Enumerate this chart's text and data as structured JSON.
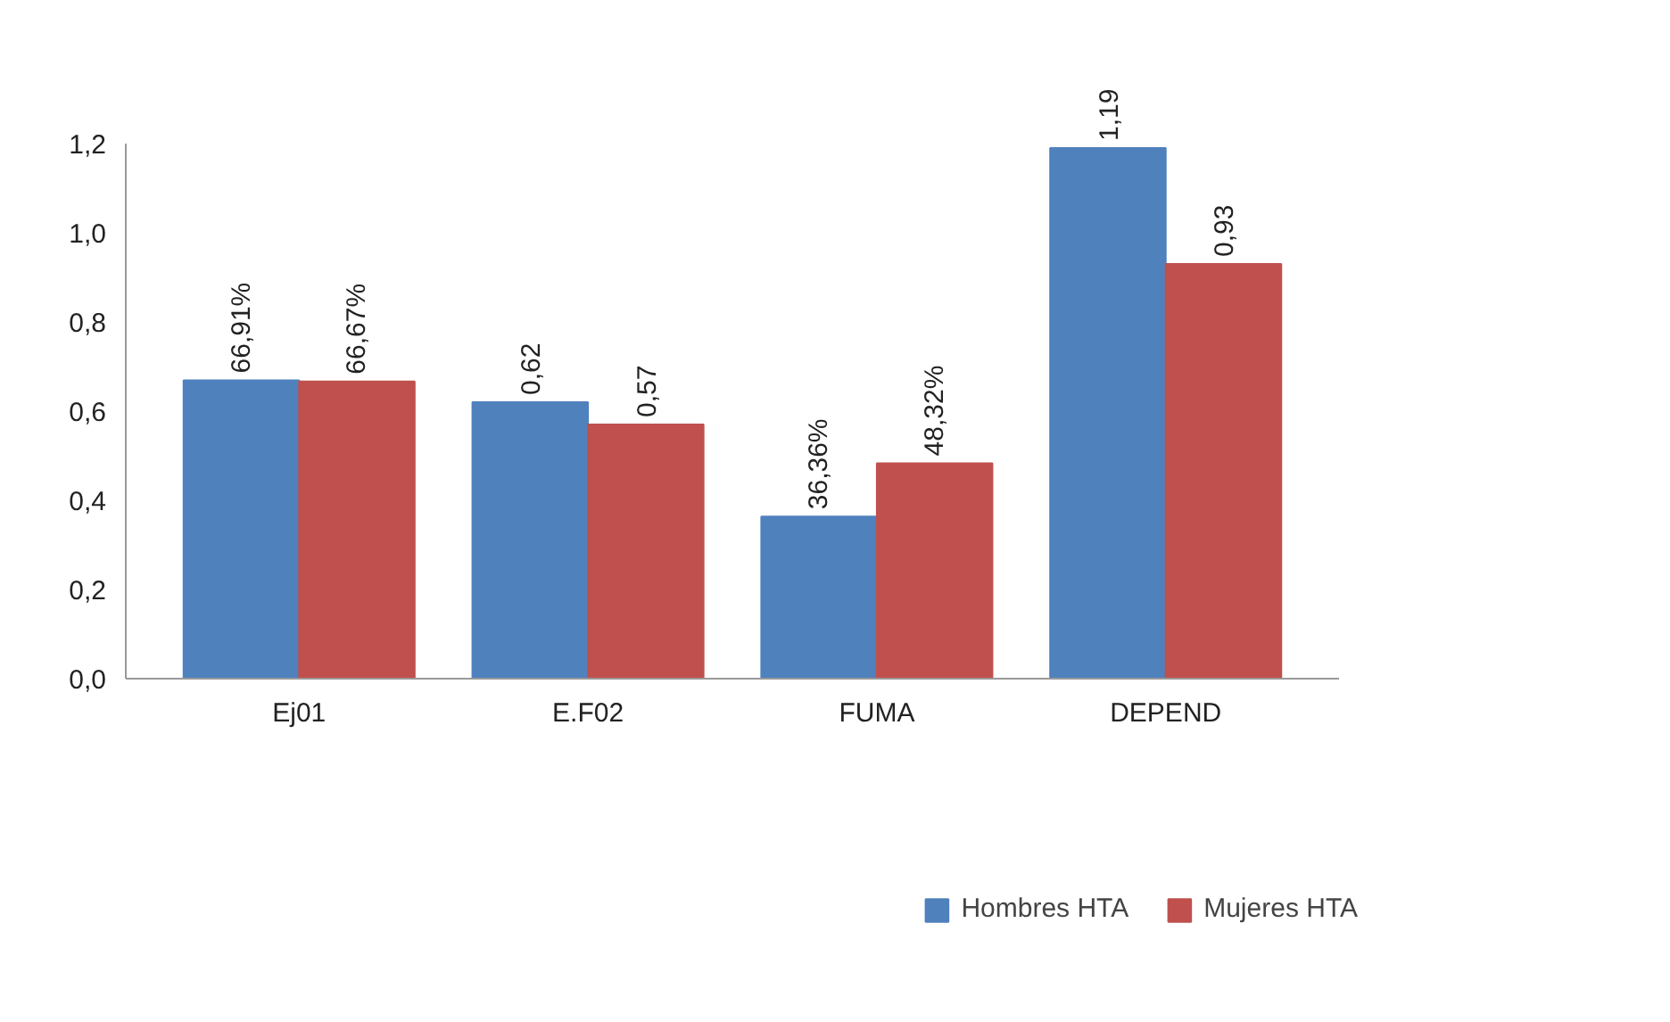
{
  "chart_data": {
    "type": "bar",
    "categories": [
      "Ej01",
      "E.F02",
      "FUMA",
      "DEPEND"
    ],
    "series": [
      {
        "name": "Hombres HTA",
        "color": "#4f81bd",
        "values": [
          0.6691,
          0.62,
          0.3636,
          1.19
        ],
        "value_labels": [
          "66,91%",
          "0,62",
          "36,36%",
          "1,19"
        ]
      },
      {
        "name": "Mujeres HTA",
        "color": "#c0504d",
        "values": [
          0.6667,
          0.57,
          0.4832,
          0.93
        ],
        "value_labels": [
          "66,67%",
          "0,57",
          "48,32%",
          "0,93"
        ]
      }
    ],
    "ylim": [
      0,
      1.2
    ],
    "yticks": [
      {
        "value": 0,
        "label": "0,0"
      },
      {
        "value": 0.2,
        "label": "0,2"
      },
      {
        "value": 0.4,
        "label": "0,4"
      },
      {
        "value": 0.6,
        "label": "0,6"
      },
      {
        "value": 0.8,
        "label": "0,8"
      },
      {
        "value": 1.0,
        "label": "1,0"
      },
      {
        "value": 1.2,
        "label": "1,2"
      }
    ],
    "grid": false,
    "legend": "bottom"
  }
}
